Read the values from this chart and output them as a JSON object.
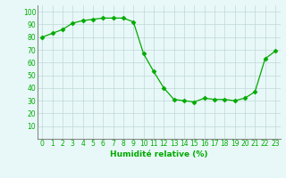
{
  "x": [
    0,
    1,
    2,
    3,
    4,
    5,
    6,
    7,
    8,
    9,
    10,
    11,
    12,
    13,
    14,
    15,
    16,
    17,
    18,
    19,
    20,
    21,
    22,
    23
  ],
  "y": [
    80,
    83,
    86,
    91,
    93,
    94,
    95,
    95,
    95,
    92,
    67,
    53,
    40,
    31,
    30,
    29,
    32,
    31,
    31,
    30,
    32,
    37,
    63,
    69
  ],
  "line_color": "#00aa00",
  "marker": "D",
  "marker_size": 2.5,
  "bg_color": "#e8f8f8",
  "grid_color": "#c0d8d8",
  "xlabel": "Humidité relative (%)",
  "xlabel_color": "#00aa00",
  "xlabel_fontsize": 6.5,
  "tick_fontsize": 5.5,
  "ylim": [
    0,
    105
  ],
  "yticks": [
    10,
    20,
    30,
    40,
    50,
    60,
    70,
    80,
    90,
    100
  ],
  "xlim": [
    -0.5,
    23.5
  ],
  "linewidth": 0.9,
  "tick_color": "#00aa00"
}
